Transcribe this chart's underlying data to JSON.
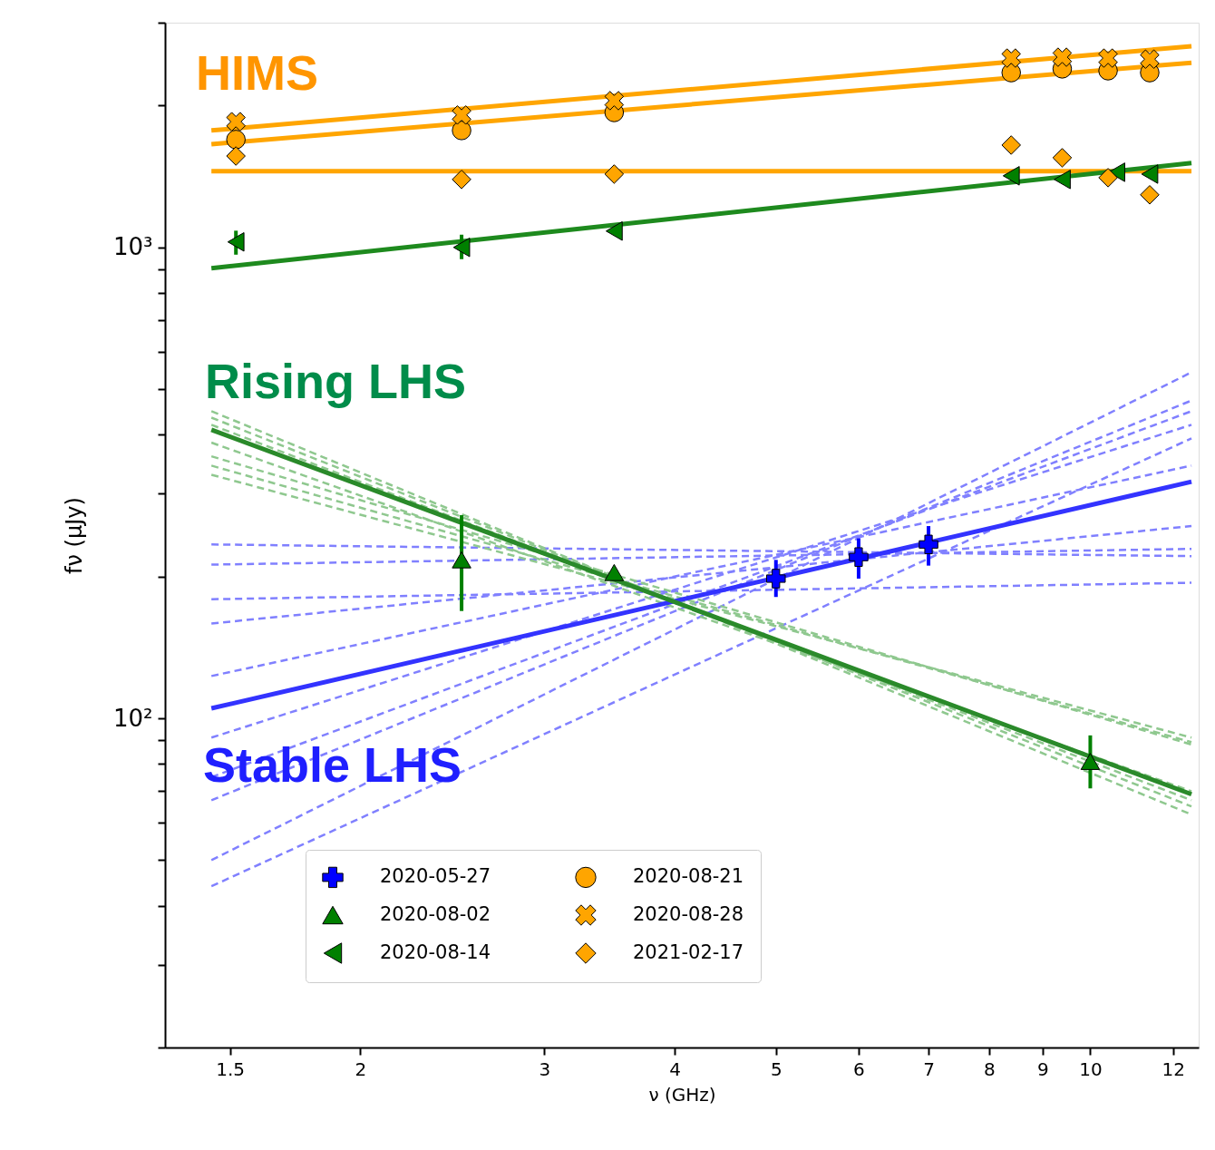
{
  "chart_data": {
    "type": "scatter",
    "xlabel": "ν (GHz)",
    "ylabel": "fν (μJy)",
    "log": "xy",
    "grid": false,
    "legend": "bottom",
    "xlim": [
      1.3,
      12.7
    ],
    "xticks": [
      1.5,
      2,
      3,
      4,
      5,
      6,
      7,
      8,
      9,
      10,
      12
    ],
    "ylim": [
      20,
      3000
    ],
    "yticks": [
      {
        "value": 20,
        "label": null
      },
      {
        "value": 30,
        "label": null
      },
      {
        "value": 40,
        "label": null
      },
      {
        "value": 50,
        "label": null
      },
      {
        "value": 60,
        "label": null
      },
      {
        "value": 70,
        "label": null
      },
      {
        "value": 80,
        "label": null
      },
      {
        "value": 90,
        "label": null
      },
      {
        "value": 100,
        "label": "10²"
      },
      {
        "value": 200,
        "label": null
      },
      {
        "value": 300,
        "label": null
      },
      {
        "value": 400,
        "label": null
      },
      {
        "value": 500,
        "label": null
      },
      {
        "value": 600,
        "label": null
      },
      {
        "value": 700,
        "label": null
      },
      {
        "value": 800,
        "label": null
      },
      {
        "value": 900,
        "label": null
      },
      {
        "value": 1000,
        "label": "10³"
      },
      {
        "value": 2000,
        "label": null
      },
      {
        "value": 3000,
        "label": null
      }
    ],
    "series": [
      {
        "type": "line",
        "line_style": "dashed",
        "color": "#8080ff",
        "x": [
          1.44,
          12.5
        ],
        "values": [
          234,
          221
        ]
      },
      {
        "type": "line",
        "line_style": "dashed",
        "color": "#8080ff",
        "x": [
          1.44,
          12.5
        ],
        "values": [
          212,
          229
        ]
      },
      {
        "type": "line",
        "line_style": "dashed",
        "color": "#8080ff",
        "x": [
          1.44,
          12.5
        ],
        "values": [
          179,
          194
        ]
      },
      {
        "type": "line",
        "line_style": "dashed",
        "color": "#8080ff",
        "x": [
          1.44,
          12.5
        ],
        "values": [
          159,
          256
        ]
      },
      {
        "type": "line",
        "line_style": "dashed",
        "color": "#8080ff",
        "x": [
          1.44,
          12.5
        ],
        "values": [
          123,
          344
        ]
      },
      {
        "type": "line",
        "line_style": "dashed",
        "color": "#8080ff",
        "x": [
          1.44,
          12.5
        ],
        "values": [
          91,
          420
        ]
      },
      {
        "type": "line",
        "line_style": "dashed",
        "color": "#8080ff",
        "x": [
          1.44,
          12.5
        ],
        "values": [
          75,
          449
        ]
      },
      {
        "type": "line",
        "line_style": "dashed",
        "color": "#8080ff",
        "x": [
          1.44,
          12.5
        ],
        "values": [
          67,
          473
        ]
      },
      {
        "type": "line",
        "line_style": "dashed",
        "color": "#8080ff",
        "x": [
          1.44,
          12.5
        ],
        "values": [
          50,
          543
        ]
      },
      {
        "type": "line",
        "line_style": "dashed",
        "color": "#8080ff",
        "x": [
          1.44,
          12.5
        ],
        "values": [
          44,
          393
        ]
      },
      {
        "type": "line",
        "line_style": "dashed",
        "color": "#8fc88f",
        "x": [
          1.44,
          12.5
        ],
        "values": [
          449,
          62.5
        ]
      },
      {
        "type": "line",
        "line_style": "dashed",
        "color": "#8fc88f",
        "x": [
          1.44,
          12.5
        ],
        "values": [
          435,
          65
        ]
      },
      {
        "type": "line",
        "line_style": "dashed",
        "color": "#8fc88f",
        "x": [
          1.44,
          12.5
        ],
        "values": [
          420,
          67
        ]
      },
      {
        "type": "line",
        "line_style": "dashed",
        "color": "#8fc88f",
        "x": [
          1.44,
          12.5
        ],
        "values": [
          385,
          70
        ]
      },
      {
        "type": "line",
        "line_style": "dashed",
        "color": "#8fc88f",
        "x": [
          1.44,
          12.5
        ],
        "values": [
          360,
          88
        ]
      },
      {
        "type": "line",
        "line_style": "dashed",
        "color": "#8fc88f",
        "x": [
          1.44,
          12.5
        ],
        "values": [
          344,
          89
        ]
      },
      {
        "type": "line",
        "line_style": "dashed",
        "color": "#8fc88f",
        "x": [
          1.44,
          12.5
        ],
        "values": [
          329,
          91
        ]
      },
      {
        "type": "line",
        "line_style": "solid",
        "color": "#3333ff",
        "x": [
          1.44,
          12.5
        ],
        "values": [
          105,
          318
        ]
      },
      {
        "type": "line",
        "line_style": "solid",
        "color": "#2a8a2a",
        "x": [
          1.44,
          12.5
        ],
        "values": [
          410,
          69
        ]
      },
      {
        "type": "line",
        "line_style": "solid",
        "color": "#ffa500",
        "x": [
          1.44,
          12.5
        ],
        "values": [
          1771,
          2673
        ]
      },
      {
        "type": "line",
        "line_style": "solid",
        "color": "#ffa500",
        "x": [
          1.44,
          12.5
        ],
        "values": [
          1656,
          2466
        ]
      },
      {
        "type": "line",
        "line_style": "solid",
        "color": "#ffa500",
        "x": [
          1.44,
          12.5
        ],
        "values": [
          1451,
          1451
        ]
      },
      {
        "type": "line",
        "line_style": "solid",
        "color": "#1e8a1e",
        "x": [
          1.44,
          12.5
        ],
        "values": [
          903,
          1510
        ]
      },
      {
        "name": "2020-05-27",
        "color": "#0000ff",
        "marker": "cross",
        "x": [
          5,
          6,
          7
        ],
        "values": [
          198,
          220,
          234
        ],
        "errors": [
          [
            181,
            217
          ],
          [
            198,
            241
          ],
          [
            211,
            256
          ]
        ]
      },
      {
        "name": "2020-08-02",
        "color": "#008000",
        "marker": "triangle",
        "x": [
          2.5,
          3.5,
          10
        ],
        "values": [
          217,
          204,
          81
        ],
        "errors": [
          [
            169,
            270
          ],
          null,
          [
            71,
            92
          ]
        ]
      },
      {
        "name": "2020-08-14",
        "color": "#008000",
        "marker": "triangle-left",
        "x": [
          1.52,
          2.5,
          3.5,
          8.4,
          9.4,
          10.6,
          11.4
        ],
        "values": [
          1027,
          1000,
          1083,
          1419,
          1394,
          1444,
          1431
        ],
        "errors": [
          [
            965,
            1085
          ],
          [
            944,
            1064
          ],
          null,
          null,
          null,
          null,
          null
        ]
      },
      {
        "name": "2020-08-21",
        "color": "#ffa500",
        "marker": "circle",
        "x": [
          1.52,
          2.5,
          3.5,
          8.4,
          9.4,
          10.4,
          11.4
        ],
        "values": [
          1694,
          1771,
          1934,
          2350,
          2394,
          2372,
          2350
        ]
      },
      {
        "name": "2020-08-28",
        "color": "#ffa500",
        "marker": "x",
        "x": [
          1.52,
          2.5,
          3.5,
          8.4,
          9.4,
          10.4,
          11.4
        ],
        "values": [
          1849,
          1910,
          2049,
          2523,
          2534,
          2523,
          2510
        ]
      },
      {
        "name": "2021-02-17",
        "color": "#ffa500",
        "marker": "diamond",
        "x": [
          1.52,
          2.5,
          3.5,
          8.4,
          9.4,
          10.4,
          11.4
        ],
        "values": [
          1563,
          1394,
          1431,
          1649,
          1550,
          1406,
          1293
        ]
      }
    ],
    "annotations": [
      "HIMS",
      "Rising LHS",
      "Stable LHS"
    ]
  }
}
